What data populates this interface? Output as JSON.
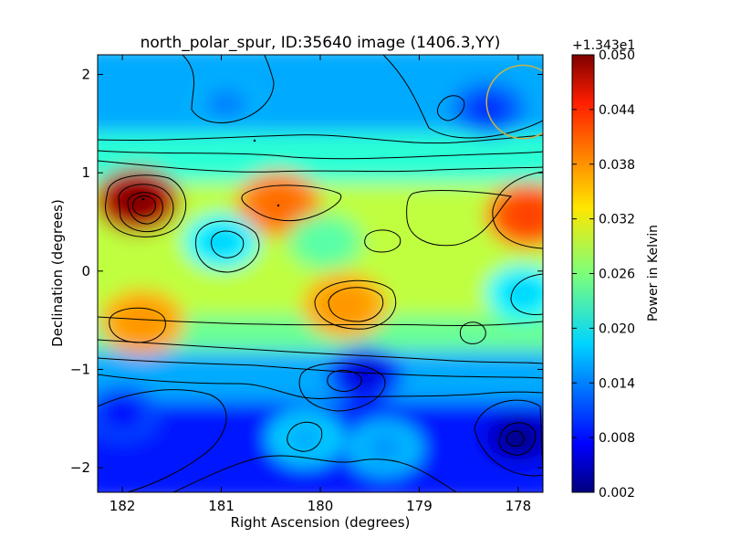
{
  "chart_data": {
    "type": "heatmap",
    "title": "north_polar_spur, ID:35640 image (1406.3,YY)",
    "xlabel": "Right Ascension (degrees)",
    "ylabel": "Declination (degrees)",
    "xlim": [
      182.25,
      177.75
    ],
    "ylim": [
      -2.25,
      2.2
    ],
    "x_ticks": [
      182,
      181,
      180,
      179,
      178
    ],
    "x_tick_labels": [
      "182",
      "181",
      "180",
      "179",
      "178"
    ],
    "y_ticks": [
      2,
      1,
      0,
      -1,
      -2
    ],
    "y_tick_labels": [
      "2",
      "1",
      "0",
      "−1",
      "−2"
    ],
    "colorbar": {
      "label": "Power in Kelvin",
      "offset_label": "+1.343e1",
      "range": [
        0.002,
        0.05
      ],
      "ticks": [
        0.05,
        0.044,
        0.038,
        0.032,
        0.026,
        0.02,
        0.014,
        0.008,
        0.002
      ],
      "tick_labels": [
        "0.050",
        "0.044",
        "0.038",
        "0.032",
        "0.026",
        "0.020",
        "0.014",
        "0.008",
        "0.002"
      ],
      "colormap": "jet"
    },
    "features": [
      {
        "ra": 181.85,
        "dec": 0.72,
        "value": 0.05,
        "kind": "peak"
      },
      {
        "ra": 177.9,
        "dec": 0.57,
        "value": 0.041,
        "kind": "peak"
      },
      {
        "ra": 180.42,
        "dec": 0.68,
        "value": 0.039,
        "kind": "peak"
      },
      {
        "ra": 181.8,
        "dec": -0.52,
        "value": 0.037,
        "kind": "peak"
      },
      {
        "ra": 179.75,
        "dec": -0.35,
        "value": 0.037,
        "kind": "peak"
      },
      {
        "ra": 179.95,
        "dec": 0.3,
        "value": 0.024,
        "kind": "plateau"
      },
      {
        "ra": 181.0,
        "dec": 0.3,
        "value": 0.018,
        "kind": "dip"
      },
      {
        "ra": 177.95,
        "dec": -0.22,
        "value": 0.018,
        "kind": "dip"
      },
      {
        "ra": 180.95,
        "dec": 1.7,
        "value": 0.014,
        "kind": "dip"
      },
      {
        "ra": 178.3,
        "dec": 1.65,
        "value": 0.01,
        "kind": "dip"
      },
      {
        "ra": 179.35,
        "dec": -1.8,
        "value": 0.015,
        "kind": "dip"
      },
      {
        "ra": 180.15,
        "dec": -1.7,
        "value": 0.016,
        "kind": "dip"
      },
      {
        "ra": 179.55,
        "dec": -1.05,
        "value": 0.006,
        "kind": "dip"
      },
      {
        "ra": 182.0,
        "dec": -1.45,
        "value": 0.008,
        "kind": "dip"
      },
      {
        "ra": 178.0,
        "dec": -1.7,
        "value": 0.002,
        "kind": "dip"
      }
    ],
    "beam_circle": {
      "ra": 177.95,
      "dec": 1.72,
      "radius_deg": 0.37,
      "color": "#c8b24a"
    },
    "grid": false,
    "legend": "none"
  }
}
